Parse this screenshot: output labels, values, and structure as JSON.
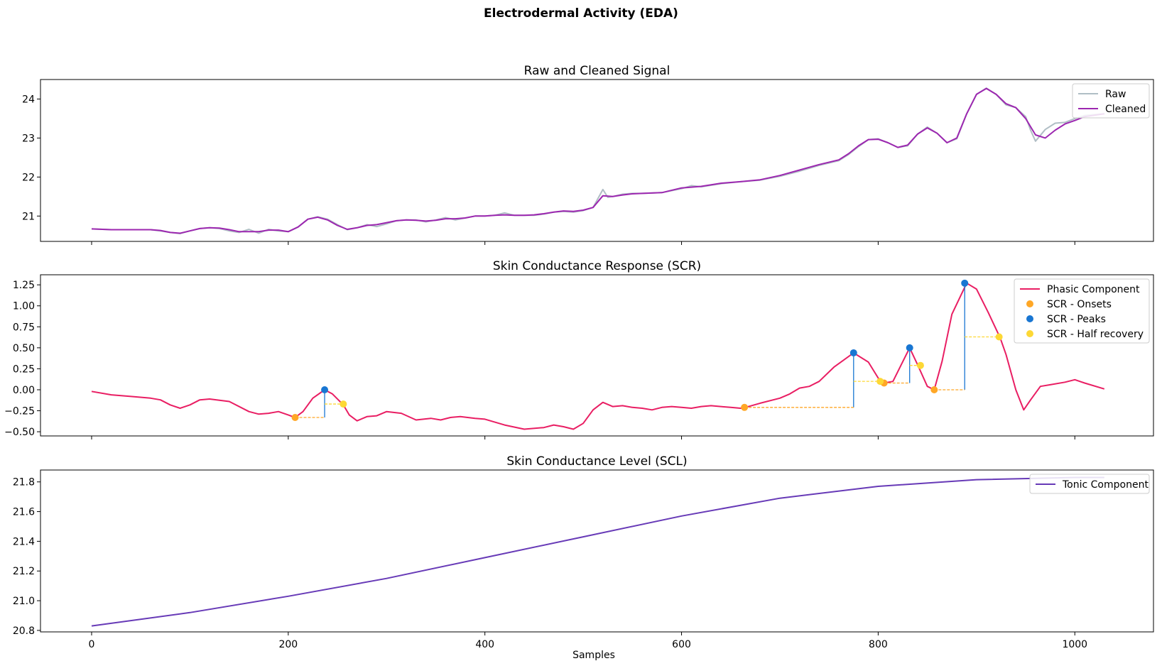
{
  "figure_title": "Electrodermal Activity (EDA)",
  "colors": {
    "raw": "#B0BEC5",
    "cleaned": "#9C27B0",
    "phasic": "#E91E63",
    "onsets": "#FFA726",
    "peaks": "#1976D2",
    "half_recovery": "#FDD835",
    "tonic": "#673AB7"
  },
  "chart_data": [
    {
      "type": "line",
      "title": "Raw and Cleaned Signal",
      "xlabel": "",
      "ylabel": "",
      "xlim": [
        -52,
        1080
      ],
      "ylim": [
        20.35,
        24.5
      ],
      "x_ticks": [
        0,
        200,
        400,
        600,
        800,
        1000
      ],
      "y_ticks": [
        21,
        22,
        23,
        24
      ],
      "legend": "top-right",
      "series": [
        {
          "name": "Raw",
          "x": [
            0,
            20,
            40,
            60,
            70,
            80,
            90,
            100,
            110,
            120,
            130,
            140,
            150,
            160,
            170,
            180,
            190,
            200,
            210,
            220,
            230,
            240,
            250,
            260,
            270,
            280,
            290,
            300,
            310,
            320,
            330,
            340,
            350,
            360,
            370,
            380,
            390,
            400,
            410,
            420,
            430,
            440,
            450,
            460,
            470,
            480,
            490,
            500,
            510,
            520,
            525,
            530,
            540,
            550,
            560,
            580,
            600,
            610,
            620,
            640,
            660,
            680,
            700,
            720,
            740,
            760,
            770,
            780,
            790,
            800,
            810,
            820,
            830,
            840,
            850,
            860,
            870,
            880,
            890,
            900,
            910,
            920,
            930,
            940,
            950,
            955,
            960,
            970,
            980,
            990,
            1000,
            1010,
            1030
          ],
          "values": [
            20.67,
            20.65,
            20.65,
            20.65,
            20.62,
            20.58,
            20.55,
            20.62,
            20.68,
            20.7,
            20.68,
            20.62,
            20.58,
            20.66,
            20.56,
            20.66,
            20.62,
            20.6,
            20.72,
            20.92,
            20.98,
            20.92,
            20.78,
            20.65,
            20.7,
            20.78,
            20.73,
            20.8,
            20.88,
            20.9,
            20.9,
            20.85,
            20.9,
            20.96,
            20.9,
            20.95,
            21.0,
            21.0,
            21.02,
            21.08,
            21.02,
            21.02,
            21.02,
            21.05,
            21.1,
            21.12,
            21.1,
            21.14,
            21.22,
            21.68,
            21.48,
            21.5,
            21.56,
            21.58,
            21.58,
            21.6,
            21.7,
            21.78,
            21.75,
            21.83,
            21.88,
            21.92,
            22.02,
            22.15,
            22.3,
            22.42,
            22.58,
            22.78,
            22.96,
            22.98,
            22.88,
            22.76,
            22.8,
            23.1,
            23.28,
            23.12,
            22.88,
            22.98,
            23.62,
            24.12,
            24.28,
            24.12,
            23.85,
            23.78,
            23.55,
            23.2,
            22.92,
            23.22,
            23.38,
            23.4,
            23.5,
            23.58,
            23.62
          ],
          "values_note": ""
        },
        {
          "name": "Cleaned",
          "x": [
            0,
            20,
            40,
            60,
            70,
            80,
            90,
            100,
            110,
            120,
            130,
            140,
            150,
            160,
            170,
            180,
            190,
            200,
            210,
            220,
            230,
            240,
            250,
            260,
            270,
            280,
            290,
            300,
            310,
            320,
            330,
            340,
            350,
            360,
            370,
            380,
            390,
            400,
            410,
            420,
            430,
            440,
            450,
            460,
            470,
            480,
            490,
            500,
            510,
            520,
            530,
            540,
            550,
            560,
            580,
            600,
            620,
            640,
            660,
            680,
            700,
            720,
            740,
            760,
            770,
            780,
            790,
            800,
            810,
            820,
            830,
            840,
            850,
            860,
            870,
            880,
            890,
            900,
            910,
            920,
            930,
            940,
            950,
            960,
            970,
            980,
            990,
            1000,
            1010,
            1030
          ],
          "values": [
            20.67,
            20.65,
            20.65,
            20.65,
            20.63,
            20.58,
            20.56,
            20.62,
            20.68,
            20.7,
            20.69,
            20.65,
            20.6,
            20.6,
            20.6,
            20.64,
            20.64,
            20.6,
            20.72,
            20.92,
            20.97,
            20.9,
            20.76,
            20.66,
            20.7,
            20.76,
            20.78,
            20.83,
            20.88,
            20.9,
            20.89,
            20.87,
            20.89,
            20.93,
            20.93,
            20.95,
            21.0,
            21.0,
            21.02,
            21.03,
            21.02,
            21.02,
            21.03,
            21.06,
            21.1,
            21.13,
            21.12,
            21.15,
            21.22,
            21.52,
            21.5,
            21.54,
            21.57,
            21.58,
            21.6,
            21.72,
            21.76,
            21.84,
            21.88,
            21.93,
            22.04,
            22.18,
            22.32,
            22.44,
            22.6,
            22.8,
            22.96,
            22.97,
            22.88,
            22.76,
            22.82,
            23.1,
            23.26,
            23.12,
            22.88,
            23.0,
            23.62,
            24.12,
            24.27,
            24.12,
            23.88,
            23.78,
            23.5,
            23.08,
            23.0,
            23.2,
            23.36,
            23.45,
            23.55,
            23.62
          ],
          "values_note": ""
        }
      ]
    },
    {
      "type": "line",
      "title": "Skin Conductance Response (SCR)",
      "xlabel": "",
      "ylabel": "",
      "xlim": [
        -52,
        1080
      ],
      "ylim": [
        -0.55,
        1.37
      ],
      "x_ticks": [
        0,
        200,
        400,
        600,
        800,
        1000
      ],
      "y_ticks": [
        -0.5,
        -0.25,
        0.0,
        0.25,
        0.5,
        0.75,
        1.0,
        1.25
      ],
      "y_tick_labels": [
        "−0.50",
        "−0.25",
        "0.00",
        "0.25",
        "0.50",
        "0.75",
        "1.00",
        "1.25"
      ],
      "legend": "top-right",
      "series": [
        {
          "name": "Phasic Component",
          "x": [
            0,
            20,
            40,
            60,
            70,
            80,
            90,
            100,
            110,
            120,
            140,
            160,
            170,
            180,
            190,
            200,
            207,
            215,
            225,
            237,
            245,
            256,
            262,
            270,
            280,
            290,
            300,
            315,
            330,
            345,
            355,
            365,
            375,
            390,
            400,
            420,
            440,
            460,
            470,
            480,
            490,
            500,
            510,
            520,
            530,
            540,
            550,
            560,
            570,
            580,
            590,
            600,
            610,
            620,
            630,
            640,
            650,
            660,
            665,
            680,
            700,
            710,
            720,
            730,
            740,
            755,
            775,
            790,
            800,
            806,
            815,
            832,
            840,
            850,
            857,
            865,
            875,
            890,
            900,
            912,
            924,
            930,
            940,
            948,
            955,
            965,
            975,
            990,
            1000,
            1010,
            1030
          ],
          "values": [
            -0.02,
            -0.06,
            -0.08,
            -0.1,
            -0.12,
            -0.18,
            -0.22,
            -0.18,
            -0.12,
            -0.11,
            -0.14,
            -0.26,
            -0.29,
            -0.28,
            -0.26,
            -0.3,
            -0.33,
            -0.26,
            -0.1,
            0.0,
            -0.05,
            -0.18,
            -0.3,
            -0.37,
            -0.32,
            -0.31,
            -0.26,
            -0.28,
            -0.36,
            -0.34,
            -0.36,
            -0.33,
            -0.32,
            -0.34,
            -0.35,
            -0.42,
            -0.47,
            -0.45,
            -0.42,
            -0.44,
            -0.47,
            -0.4,
            -0.24,
            -0.15,
            -0.2,
            -0.19,
            -0.21,
            -0.22,
            -0.24,
            -0.21,
            -0.2,
            -0.21,
            -0.22,
            -0.2,
            -0.19,
            -0.2,
            -0.21,
            -0.22,
            -0.21,
            -0.16,
            -0.1,
            -0.05,
            0.02,
            0.04,
            0.1,
            0.27,
            0.44,
            0.33,
            0.14,
            0.08,
            0.1,
            0.5,
            0.3,
            0.04,
            0.0,
            0.34,
            0.9,
            1.27,
            1.2,
            0.92,
            0.62,
            0.42,
            0.0,
            -0.24,
            -0.12,
            0.04,
            0.06,
            0.09,
            0.12,
            0.08,
            0.01
          ],
          "values_note": ""
        },
        {
          "name": "SCR - Onsets",
          "x": [
            207,
            664,
            806,
            857
          ],
          "values": [
            -0.33,
            -0.21,
            0.08,
            0.0
          ],
          "values_note": ""
        },
        {
          "name": "SCR - Peaks",
          "x": [
            237,
            775,
            832,
            888
          ],
          "values": [
            0.0,
            0.44,
            0.5,
            1.27
          ],
          "values_note": ""
        },
        {
          "name": "SCR - Half recovery",
          "x": [
            256,
            802,
            843,
            923
          ],
          "values": [
            -0.17,
            0.1,
            0.29,
            0.63
          ],
          "values_note": ""
        }
      ]
    },
    {
      "type": "line",
      "title": "Skin Conductance Level (SCL)",
      "xlabel": "Samples",
      "ylabel": "",
      "xlim": [
        -52,
        1080
      ],
      "ylim": [
        20.79,
        21.88
      ],
      "x_ticks": [
        0,
        200,
        400,
        600,
        800,
        1000
      ],
      "y_ticks": [
        20.8,
        21.0,
        21.2,
        21.4,
        21.6,
        21.8
      ],
      "legend": "top-right",
      "series": [
        {
          "name": "Tonic Component",
          "x": [
            0,
            100,
            200,
            300,
            400,
            500,
            600,
            700,
            800,
            900,
            1000,
            1030
          ],
          "values": [
            20.83,
            20.92,
            21.03,
            21.15,
            21.29,
            21.43,
            21.57,
            21.69,
            21.77,
            21.815,
            21.83,
            21.83
          ],
          "values_note": ""
        }
      ]
    }
  ]
}
